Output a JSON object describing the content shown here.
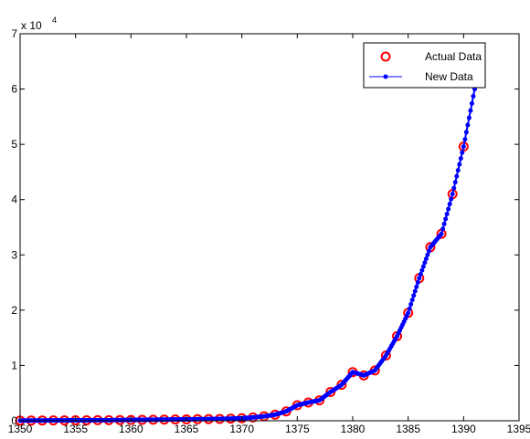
{
  "chart_data": {
    "type": "scatter",
    "title": "",
    "xlabel": "",
    "ylabel": "",
    "xlim": [
      1350,
      1395
    ],
    "ylim": [
      0,
      70000
    ],
    "y_exponent_label": "x 10",
    "y_exponent_power": "4",
    "grid": false,
    "legend_position": "top-right",
    "x_ticks": [
      "1350",
      "1355",
      "1360",
      "1365",
      "1370",
      "1375",
      "1380",
      "1385",
      "1390",
      "1395"
    ],
    "y_ticks": [
      "0",
      "1",
      "2",
      "3",
      "4",
      "5",
      "6",
      "7"
    ],
    "series": [
      {
        "name": "Actual Data",
        "marker": "circle",
        "color": "#ff0000",
        "x": [
          1350,
          1351,
          1352,
          1353,
          1354,
          1355,
          1356,
          1357,
          1358,
          1359,
          1360,
          1361,
          1362,
          1363,
          1364,
          1365,
          1366,
          1367,
          1368,
          1369,
          1370,
          1371,
          1372,
          1373,
          1374,
          1375,
          1376,
          1377,
          1378,
          1379,
          1380,
          1381,
          1382,
          1383,
          1384,
          1385,
          1386,
          1387,
          1388,
          1389,
          1390
        ],
        "y": [
          30,
          40,
          50,
          60,
          70,
          80,
          90,
          100,
          110,
          130,
          150,
          170,
          190,
          210,
          230,
          250,
          280,
          300,
          330,
          380,
          450,
          600,
          800,
          1100,
          1700,
          2800,
          3300,
          3700,
          5200,
          6500,
          8800,
          8200,
          9100,
          11800,
          15300,
          19500,
          25800,
          31400,
          33800,
          41000,
          49600
        ]
      },
      {
        "name": "New Data",
        "marker": "dot",
        "color": "#0000ff",
        "x": [
          1350,
          1351,
          1352,
          1353,
          1354,
          1355,
          1356,
          1357,
          1358,
          1359,
          1360,
          1361,
          1362,
          1363,
          1364,
          1365,
          1366,
          1367,
          1368,
          1369,
          1370,
          1371,
          1372,
          1373,
          1374,
          1375,
          1376,
          1377,
          1378,
          1379,
          1380,
          1381,
          1382,
          1383,
          1384,
          1385,
          1386,
          1387,
          1388,
          1389,
          1390,
          1391
        ],
        "y": [
          30,
          40,
          50,
          60,
          70,
          80,
          90,
          100,
          110,
          130,
          150,
          170,
          190,
          210,
          230,
          250,
          280,
          300,
          330,
          380,
          450,
          600,
          800,
          1100,
          1700,
          2800,
          3300,
          3700,
          5200,
          6500,
          8800,
          8200,
          9100,
          11800,
          15300,
          19500,
          25800,
          31400,
          33800,
          41000,
          49600,
          60000
        ]
      }
    ]
  }
}
